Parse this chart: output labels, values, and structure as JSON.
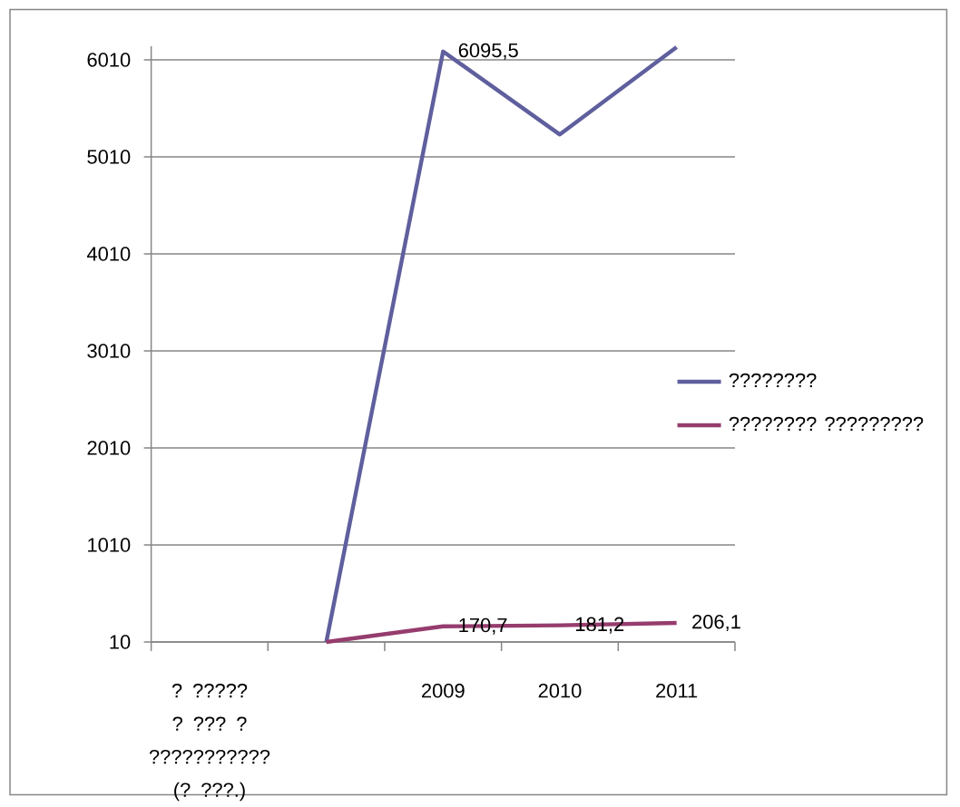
{
  "chart_data": {
    "type": "line",
    "categories": [
      "? ????? ? ??? ? ??????????? (? ???.)",
      null,
      "2009",
      "2010",
      "2011"
    ],
    "series": [
      {
        "name": "????????",
        "color": "#5f5f9e",
        "values": [
          null,
          10,
          6095.5,
          5240,
          6140
        ],
        "value_labels": [
          null,
          null,
          "6095,5",
          null,
          null
        ]
      },
      {
        "name": "???????? ?????????",
        "color": "#963c6e",
        "values": [
          null,
          10,
          170.7,
          181.2,
          206.1
        ],
        "value_labels": [
          null,
          null,
          "170,7",
          "181,2",
          "206,1"
        ]
      }
    ],
    "ylim": [
      10,
      6150
    ],
    "yticks": [
      10,
      1010,
      2010,
      3010,
      4010,
      5010,
      6010
    ],
    "grid": "y",
    "legend": "right"
  }
}
